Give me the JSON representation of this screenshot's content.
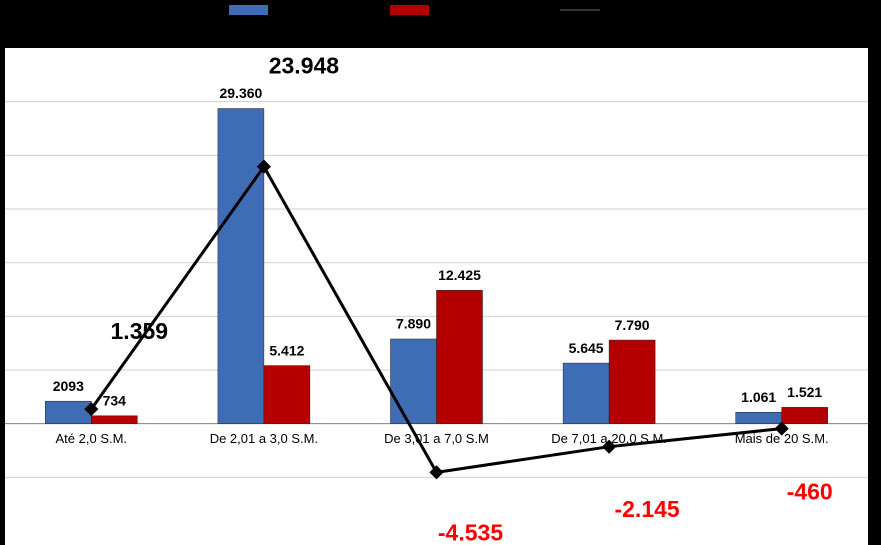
{
  "chart_data": {
    "type": "bar",
    "categories": [
      "Até 2,0 S.M.",
      "De 2,01 a 3,0 S.M.",
      "De 3,01 a 7,0 S.M",
      "De 7,01 a 20,0 S.M.",
      "Mais de 20 S.M."
    ],
    "series": [
      {
        "color": "#3f6db5",
        "values": [
          2093,
          29360,
          7890,
          5645,
          1061
        ],
        "value_labels": [
          "2093",
          "29.360",
          "7.890",
          "5.645",
          "1.061"
        ]
      },
      {
        "color": "#b50000",
        "values": [
          734,
          5412,
          12425,
          7790,
          1521
        ],
        "value_labels": [
          "734",
          "5.412",
          "12.425",
          "7.790",
          "1.521"
        ]
      },
      {
        "type": "line",
        "color": "#000000",
        "values": [
          1359,
          23948,
          -4535,
          -2145,
          -460
        ],
        "value_labels": [
          "1.359",
          "23.948",
          "-4.535",
          "-2.145",
          "-460"
        ],
        "negative_label_color": "#ff0000"
      }
    ],
    "ylim": [
      -10000,
      35000
    ],
    "yticks": [
      -5000,
      0,
      5000,
      10000,
      15000,
      20000,
      25000,
      30000
    ],
    "grid": true
  }
}
